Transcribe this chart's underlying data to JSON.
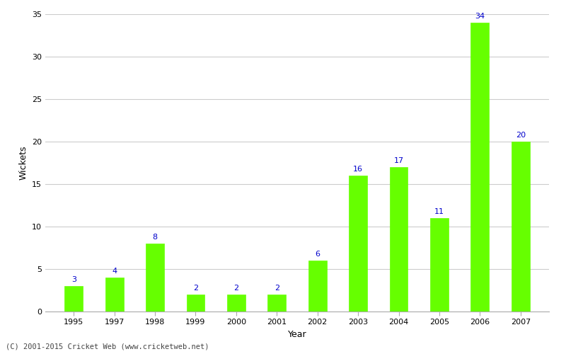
{
  "years": [
    "1995",
    "1997",
    "1998",
    "1999",
    "2000",
    "2001",
    "2002",
    "2003",
    "2004",
    "2005",
    "2006",
    "2007"
  ],
  "values": [
    3,
    4,
    8,
    2,
    2,
    2,
    6,
    16,
    17,
    11,
    34,
    20
  ],
  "bar_color": "#66ff00",
  "bar_edge_color": "#66ff00",
  "label_color": "#0000cc",
  "xlabel": "Year",
  "ylabel": "Wickets",
  "ylim": [
    0,
    35
  ],
  "yticks": [
    0,
    5,
    10,
    15,
    20,
    25,
    30,
    35
  ],
  "label_fontsize": 8,
  "axis_label_fontsize": 9,
  "tick_fontsize": 8,
  "caption": "(C) 2001-2015 Cricket Web (www.cricketweb.net)",
  "background_color": "#ffffff",
  "grid_color": "#cccccc",
  "bar_width": 0.45
}
